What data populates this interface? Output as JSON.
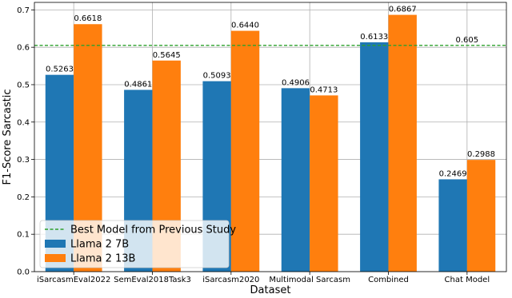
{
  "chart_data": {
    "type": "bar",
    "xlabel": "Dataset",
    "ylabel": "F1-Score Sarcastic",
    "ylim": [
      0,
      0.72
    ],
    "yticks": [
      "0.0",
      "0.1",
      "0.2",
      "0.3",
      "0.4",
      "0.5",
      "0.6",
      "0.7"
    ],
    "grid": true,
    "legend_position": "lower-left",
    "categories": [
      "iSarcasmEval2022",
      "SemEval2018Task3",
      "iSarcasm2020",
      "Multimodal Sarcasm",
      "Combined",
      "Chat Model"
    ],
    "series": [
      {
        "name": "Llama 2 7B",
        "color": "#1f77b4",
        "values": [
          0.5263,
          0.4861,
          0.5093,
          0.4906,
          0.6133,
          0.2469
        ],
        "labels": [
          "0.5263",
          "0.4861",
          "0.5093",
          "0.4906",
          "0.6133",
          "0.2469"
        ]
      },
      {
        "name": "Llama 2 13B",
        "color": "#ff7f0e",
        "values": [
          0.6618,
          0.5645,
          0.644,
          0.4713,
          0.6867,
          0.2988
        ],
        "labels": [
          "0.6618",
          "0.5645",
          "0.6440",
          "0.4713",
          "0.6867",
          "0.2988"
        ]
      }
    ],
    "reference_line": {
      "name": "Best Model from Previous Study",
      "value": 0.605,
      "label": "0.605",
      "color": "#2ca02c",
      "style": "dashed"
    }
  }
}
